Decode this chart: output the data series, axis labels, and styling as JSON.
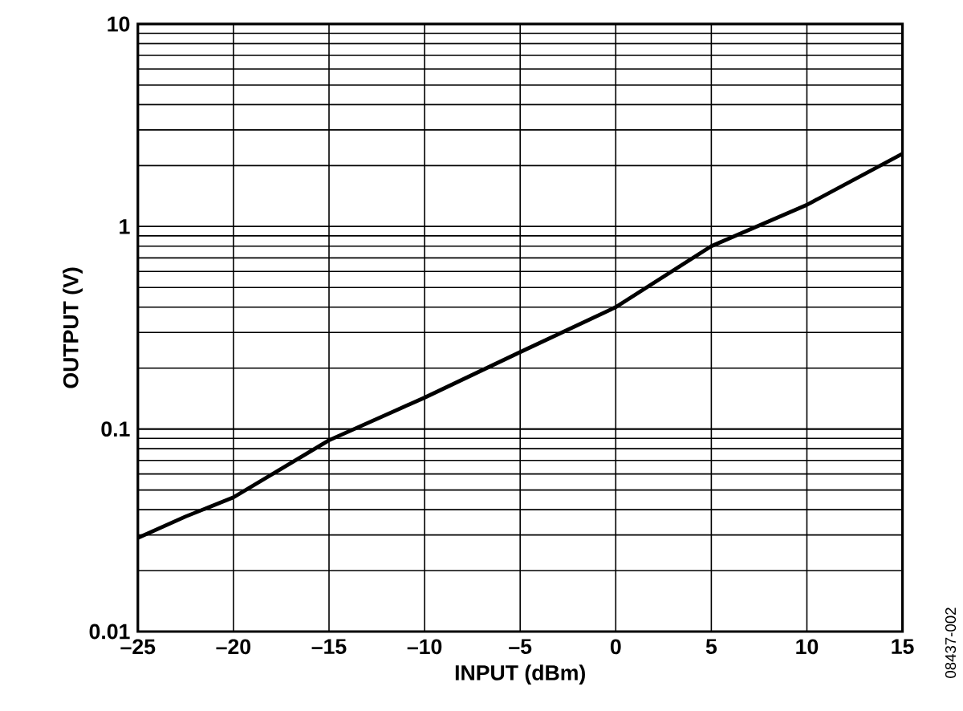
{
  "chart_data": {
    "type": "line",
    "xlabel": "INPUT (dBm)",
    "ylabel": "OUTPUT (V)",
    "x": [
      -25,
      -22.5,
      -20,
      -15,
      -10,
      -5,
      0,
      5,
      10,
      15
    ],
    "series": [
      {
        "color": "#000000",
        "values": [
          0.029,
          0.037,
          0.046,
          0.088,
          0.143,
          0.24,
          0.4,
          0.8,
          1.28,
          2.29
        ]
      }
    ],
    "xlim": [
      -25,
      15
    ],
    "ylim": [
      0.01,
      10
    ],
    "xticks": [
      {
        "value": -25,
        "label": "–25"
      },
      {
        "value": -20,
        "label": "–20"
      },
      {
        "value": -15,
        "label": "–15"
      },
      {
        "value": -10,
        "label": "–10"
      },
      {
        "value": -5,
        "label": "–5"
      },
      0,
      5,
      10,
      15
    ],
    "yticks": [
      0.01,
      0.1,
      1,
      10
    ],
    "log": "y",
    "grid": true,
    "marker": "none",
    "line_style": "solid",
    "annotations": [
      "08437-002"
    ]
  }
}
